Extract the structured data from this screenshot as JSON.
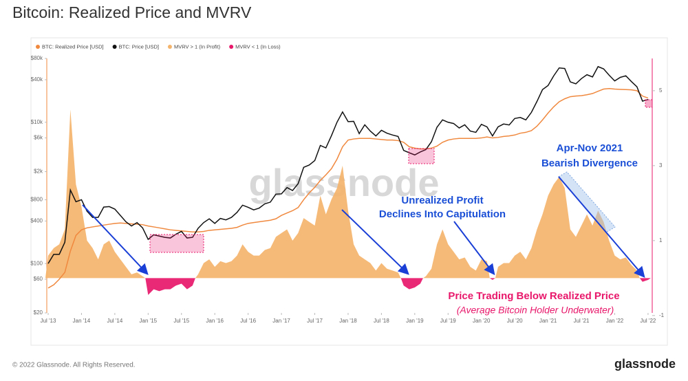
{
  "chart_data": {
    "type": "line",
    "title": "Bitcoin: Realized Price and MVRV",
    "watermark": "glassnode",
    "log_scale": true,
    "x": [
      "2013-07",
      "2013-08",
      "2013-09",
      "2013-10",
      "2013-11",
      "2013-12",
      "2014-01",
      "2014-02",
      "2014-03",
      "2014-04",
      "2014-05",
      "2014-06",
      "2014-07",
      "2014-08",
      "2014-09",
      "2014-10",
      "2014-11",
      "2014-12",
      "2015-01",
      "2015-02",
      "2015-03",
      "2015-04",
      "2015-05",
      "2015-06",
      "2015-07",
      "2015-08",
      "2015-09",
      "2015-10",
      "2015-11",
      "2015-12",
      "2016-01",
      "2016-02",
      "2016-03",
      "2016-04",
      "2016-05",
      "2016-06",
      "2016-07",
      "2016-08",
      "2016-09",
      "2016-10",
      "2016-11",
      "2016-12",
      "2017-01",
      "2017-02",
      "2017-03",
      "2017-04",
      "2017-05",
      "2017-06",
      "2017-07",
      "2017-08",
      "2017-09",
      "2017-10",
      "2017-11",
      "2017-12",
      "2018-01",
      "2018-02",
      "2018-03",
      "2018-04",
      "2018-05",
      "2018-06",
      "2018-07",
      "2018-08",
      "2018-09",
      "2018-10",
      "2018-11",
      "2018-12",
      "2019-01",
      "2019-02",
      "2019-03",
      "2019-04",
      "2019-05",
      "2019-06",
      "2019-07",
      "2019-08",
      "2019-09",
      "2019-10",
      "2019-11",
      "2019-12",
      "2020-01",
      "2020-02",
      "2020-03",
      "2020-04",
      "2020-05",
      "2020-06",
      "2020-07",
      "2020-08",
      "2020-09",
      "2020-10",
      "2020-11",
      "2020-12",
      "2021-01",
      "2021-02",
      "2021-03",
      "2021-04",
      "2021-05",
      "2021-06",
      "2021-07",
      "2021-08",
      "2021-09",
      "2021-10",
      "2021-11",
      "2021-12",
      "2022-01",
      "2022-02",
      "2022-03",
      "2022-04",
      "2022-05",
      "2022-06",
      "2022-07"
    ],
    "xlim": [
      "2013-07",
      "2022-08"
    ],
    "xticks": [
      {
        "value": "2013-07",
        "label": "Jul '13"
      },
      {
        "value": "2014-01",
        "label": "Jan '14"
      },
      {
        "value": "2014-07",
        "label": "Jul '14"
      },
      {
        "value": "2015-01",
        "label": "Jan '15"
      },
      {
        "value": "2015-07",
        "label": "Jul '15"
      },
      {
        "value": "2016-01",
        "label": "Jan '16"
      },
      {
        "value": "2016-07",
        "label": "Jul '16"
      },
      {
        "value": "2017-01",
        "label": "Jan '17"
      },
      {
        "value": "2017-07",
        "label": "Jul '17"
      },
      {
        "value": "2018-01",
        "label": "Jan '18"
      },
      {
        "value": "2018-07",
        "label": "Jul '18"
      },
      {
        "value": "2019-01",
        "label": "Jan '19"
      },
      {
        "value": "2019-07",
        "label": "Jul '19"
      },
      {
        "value": "2020-01",
        "label": "Jan '20"
      },
      {
        "value": "2020-07",
        "label": "Jul '20"
      },
      {
        "value": "2021-01",
        "label": "Jan '21"
      },
      {
        "value": "2021-07",
        "label": "Jul '21"
      },
      {
        "value": "2022-01",
        "label": "Jan '22"
      },
      {
        "value": "2022-07",
        "label": "Jul '22"
      }
    ],
    "ylim": [
      20,
      80000
    ],
    "yticks": [
      {
        "value": 80000,
        "label": "$80k"
      },
      {
        "value": 40000,
        "label": "$40k"
      },
      {
        "value": 10000,
        "label": "$10k"
      },
      {
        "value": 6000,
        "label": "$6k"
      },
      {
        "value": 2000,
        "label": "$2k"
      },
      {
        "value": 800,
        "label": "$800"
      },
      {
        "value": 400,
        "label": "$400"
      },
      {
        "value": 100,
        "label": "$100"
      },
      {
        "value": 60,
        "label": "$60"
      },
      {
        "value": 20,
        "label": "$20"
      }
    ],
    "y2lim": [
      -0.93,
      5.86
    ],
    "y2ticks": [
      5,
      3,
      1,
      -1
    ],
    "series": [
      {
        "name": "BTC: Realized Price [USD]",
        "color": "#f0883e",
        "style": "line",
        "values": [
          45,
          50,
          60,
          75,
          150,
          250,
          300,
          320,
          330,
          340,
          350,
          360,
          370,
          375,
          370,
          365,
          360,
          355,
          340,
          330,
          320,
          310,
          300,
          295,
          290,
          285,
          280,
          280,
          285,
          295,
          300,
          305,
          310,
          315,
          325,
          350,
          370,
          380,
          390,
          400,
          410,
          430,
          480,
          520,
          560,
          620,
          800,
          1000,
          1200,
          1500,
          1800,
          2200,
          3000,
          4500,
          5600,
          5800,
          5900,
          5900,
          5900,
          5800,
          5700,
          5600,
          5600,
          5500,
          5200,
          4500,
          4300,
          4200,
          4200,
          4300,
          4600,
          5200,
          5600,
          5800,
          5900,
          5900,
          5900,
          5900,
          6000,
          6200,
          6000,
          6100,
          6300,
          6400,
          6600,
          7000,
          7200,
          7600,
          8800,
          10800,
          13500,
          16500,
          19500,
          21500,
          23000,
          23500,
          23800,
          24500,
          25500,
          27500,
          29500,
          30000,
          29500,
          29200,
          29000,
          28800,
          28000,
          23500,
          22000
        ]
      },
      {
        "name": "BTC: Price [USD]",
        "color": "#111111",
        "style": "line",
        "values": [
          100,
          135,
          135,
          200,
          1100,
          750,
          800,
          550,
          450,
          450,
          630,
          640,
          590,
          480,
          390,
          340,
          380,
          320,
          220,
          255,
          245,
          235,
          230,
          260,
          285,
          230,
          235,
          315,
          380,
          430,
          370,
          435,
          415,
          450,
          530,
          670,
          625,
          575,
          610,
          700,
          740,
          960,
          970,
          1190,
          1080,
          1350,
          2300,
          2480,
          2870,
          4700,
          4340,
          6450,
          10000,
          14000,
          10200,
          10300,
          6900,
          9200,
          7500,
          6400,
          7700,
          7000,
          6600,
          6300,
          4000,
          3700,
          3450,
          3800,
          4100,
          5300,
          8500,
          10800,
          10000,
          9600,
          8300,
          9200,
          7500,
          7200,
          9350,
          8600,
          6400,
          8600,
          9450,
          9150,
          11300,
          11700,
          10800,
          13800,
          19700,
          29000,
          33100,
          45200,
          58800,
          57700,
          37300,
          35000,
          41500,
          47100,
          43800,
          61300,
          57000,
          46300,
          38500,
          43200,
          45500,
          37700,
          31800,
          19900,
          21000
        ]
      },
      {
        "name": "MVRV > 1 (In Profit)",
        "color": "#f5b46c",
        "style": "area",
        "axis": "y2",
        "values": [
          0.6,
          0.8,
          0.9,
          1.3,
          4.5,
          2.5,
          1.9,
          1.0,
          0.8,
          0.5,
          0.9,
          1.0,
          0.7,
          0.5,
          0.3,
          0.1,
          0.15,
          0.05,
          null,
          null,
          null,
          null,
          null,
          null,
          null,
          null,
          null,
          0.1,
          0.4,
          0.5,
          0.3,
          0.45,
          0.4,
          0.45,
          0.6,
          0.9,
          0.7,
          0.6,
          0.6,
          0.75,
          0.8,
          1.1,
          1.2,
          1.3,
          1.0,
          1.2,
          1.6,
          1.5,
          1.4,
          2.2,
          1.7,
          2.1,
          2.4,
          3.0,
          1.8,
          0.9,
          0.6,
          0.5,
          0.4,
          0.2,
          0.4,
          0.25,
          0.2,
          0.15,
          null,
          null,
          null,
          null,
          0.05,
          0.25,
          0.9,
          1.3,
          0.9,
          0.7,
          0.5,
          0.55,
          0.3,
          0.2,
          0.5,
          0.45,
          null,
          0.3,
          0.4,
          0.4,
          0.6,
          0.7,
          0.5,
          0.8,
          1.3,
          1.7,
          2.2,
          2.5,
          2.7,
          2.4,
          1.3,
          1.1,
          1.4,
          1.7,
          1.4,
          1.8,
          1.5,
          1.0,
          0.6,
          0.5,
          0.55,
          0.35,
          0.2,
          null,
          null
        ]
      },
      {
        "name": "MVRV < 1 (In Loss)",
        "color": "#e8176a",
        "style": "area",
        "axis": "y2",
        "values": [
          null,
          null,
          null,
          null,
          null,
          null,
          null,
          null,
          null,
          null,
          null,
          null,
          null,
          null,
          null,
          null,
          null,
          null,
          -0.45,
          -0.3,
          -0.35,
          -0.3,
          -0.3,
          -0.2,
          -0.15,
          -0.3,
          -0.2,
          null,
          null,
          null,
          null,
          null,
          null,
          null,
          null,
          null,
          null,
          null,
          null,
          null,
          null,
          null,
          null,
          null,
          null,
          null,
          null,
          null,
          null,
          null,
          null,
          null,
          null,
          null,
          null,
          null,
          null,
          null,
          null,
          null,
          null,
          null,
          null,
          null,
          -0.2,
          -0.3,
          -0.25,
          -0.15,
          null,
          null,
          null,
          null,
          null,
          null,
          null,
          null,
          null,
          null,
          null,
          null,
          -0.05,
          null,
          null,
          null,
          null,
          null,
          null,
          null,
          null,
          null,
          null,
          null,
          null,
          null,
          null,
          null,
          null,
          null,
          null,
          null,
          null,
          null,
          null,
          null,
          null,
          null,
          null,
          -0.1,
          -0.05
        ]
      }
    ],
    "annotations": [
      "Apr-Nov 2021",
      "Bearish Divergence",
      "Unrealized Profit",
      "Declines Into Capitulation",
      "Price Trading Below Realized Price",
      "(Average Bitcoin Holder Underwater)"
    ]
  },
  "footer": {
    "copyright": "© 2022 Glassnode. All Rights Reserved.",
    "brand": "glassnode"
  }
}
